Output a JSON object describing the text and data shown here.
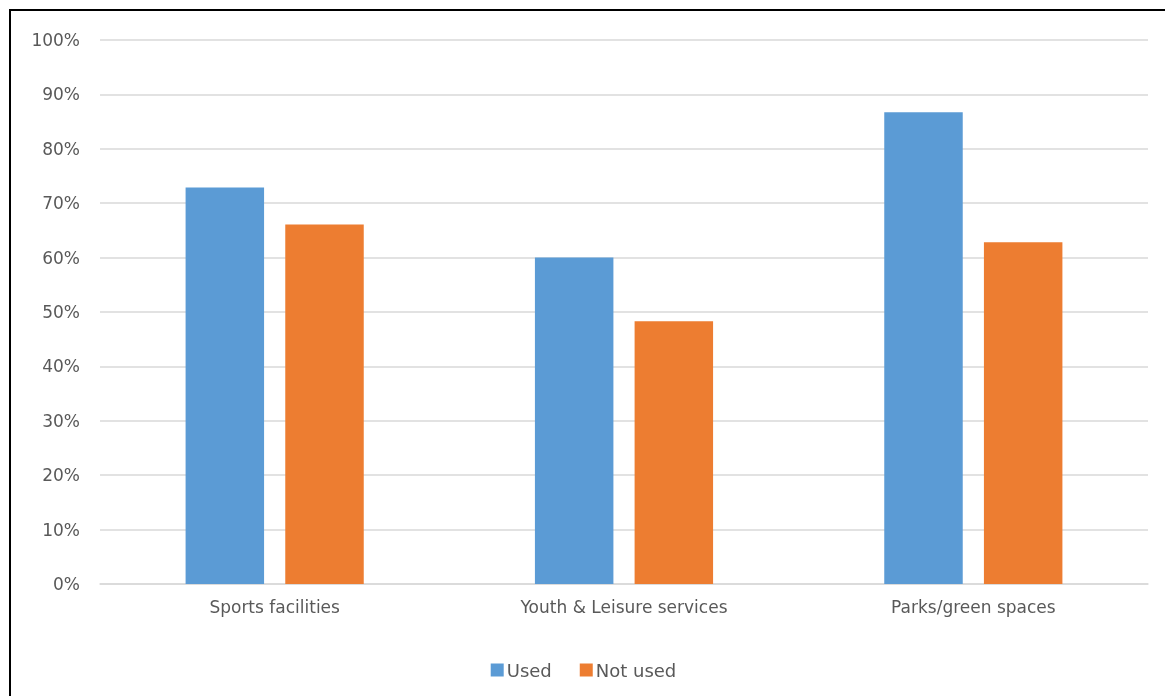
{
  "chart_data": {
    "type": "bar",
    "categories": [
      "Sports facilities",
      "Youth & Leisure services",
      "Parks/green spaces"
    ],
    "series": [
      {
        "name": "Used",
        "color": "#5b9bd5",
        "values": [
          72.9,
          60.0,
          86.7
        ]
      },
      {
        "name": "Not used",
        "color": "#ed7d31",
        "values": [
          66.1,
          48.3,
          62.8
        ]
      }
    ],
    "ylim": [
      0,
      100
    ],
    "yticks": [
      {
        "value": 0,
        "label": "0%"
      },
      {
        "value": 10,
        "label": "10%"
      },
      {
        "value": 20,
        "label": "20%"
      },
      {
        "value": 30,
        "label": "30%"
      },
      {
        "value": 40,
        "label": "40%"
      },
      {
        "value": 50,
        "label": "50%"
      },
      {
        "value": 60,
        "label": "60%"
      },
      {
        "value": 70,
        "label": "70%"
      },
      {
        "value": 80,
        "label": "80%"
      },
      {
        "value": 90,
        "label": "90%"
      },
      {
        "value": 100,
        "label": "100%"
      }
    ],
    "grid": "y",
    "legend": "bottom"
  }
}
